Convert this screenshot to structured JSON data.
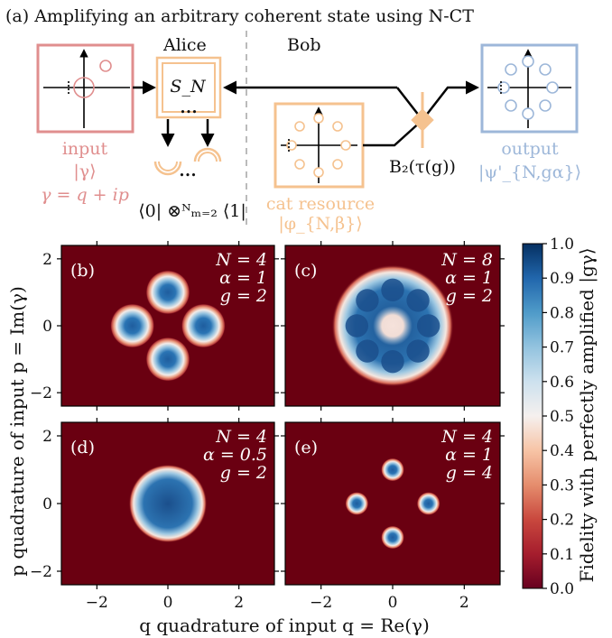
{
  "colors": {
    "input": "#e08e8e",
    "alice": "#f5c28f",
    "cat": "#f5c28f",
    "output": "#9db7d9",
    "arrow": "#000000",
    "divider": "#bbbbbb",
    "bg_low": "#6a0011",
    "blob_high": "#0a3f78"
  },
  "diagram": {
    "title": "(a)  Amplifying an arbitrary coherent state using N-CT",
    "alice": "Alice",
    "bob": "Bob",
    "sn": "S_N",
    "input_label": "input",
    "input_ket": "|γ⟩",
    "gamma_eq": "γ = q + ip",
    "cat_label": "cat resource",
    "cat_ket": "|φ_{N,β}⟩",
    "output_label": "output",
    "output_ket": "|ψ'_{N,gα}⟩",
    "bs_label": "B₂(τ(g))",
    "projection": "⟨0| ⊗ᴺₘ₌₂ ⟨1|",
    "dots": "•••"
  },
  "chart_data": {
    "type": "heatmap",
    "xlabel": "q quadrature of input q = Re(γ)",
    "ylabel": "p quadrature of input p = Im(γ)",
    "colorbar_label": "Fidelity with perfectly amplified |gγ⟩",
    "xlim": [
      -3,
      3
    ],
    "ylim": [
      -2.4,
      2.4
    ],
    "xticks": [
      -2,
      0,
      2
    ],
    "yticks": [
      -2,
      0,
      2
    ],
    "colorbar_ticks": [
      "0.0",
      "0.1",
      "0.2",
      "0.3",
      "0.4",
      "0.5",
      "0.6",
      "0.7",
      "0.8",
      "0.9",
      "1.0"
    ],
    "panels": [
      {
        "id": "(b)",
        "N": 4,
        "alpha": 1,
        "g": 2,
        "label_N": "N = 4",
        "label_alpha": "α = 1",
        "label_g": "g = 2"
      },
      {
        "id": "(c)",
        "N": 8,
        "alpha": 1,
        "g": 2,
        "label_N": "N = 8",
        "label_alpha": "α = 1",
        "label_g": "g = 2"
      },
      {
        "id": "(d)",
        "N": 4,
        "alpha": 0.5,
        "g": 2,
        "label_N": "N = 4",
        "label_alpha": "α = 0.5",
        "label_g": "g = 2"
      },
      {
        "id": "(e)",
        "N": 4,
        "alpha": 1,
        "g": 4,
        "label_N": "N = 4",
        "label_alpha": "α = 1",
        "label_g": "g = 4"
      }
    ]
  }
}
